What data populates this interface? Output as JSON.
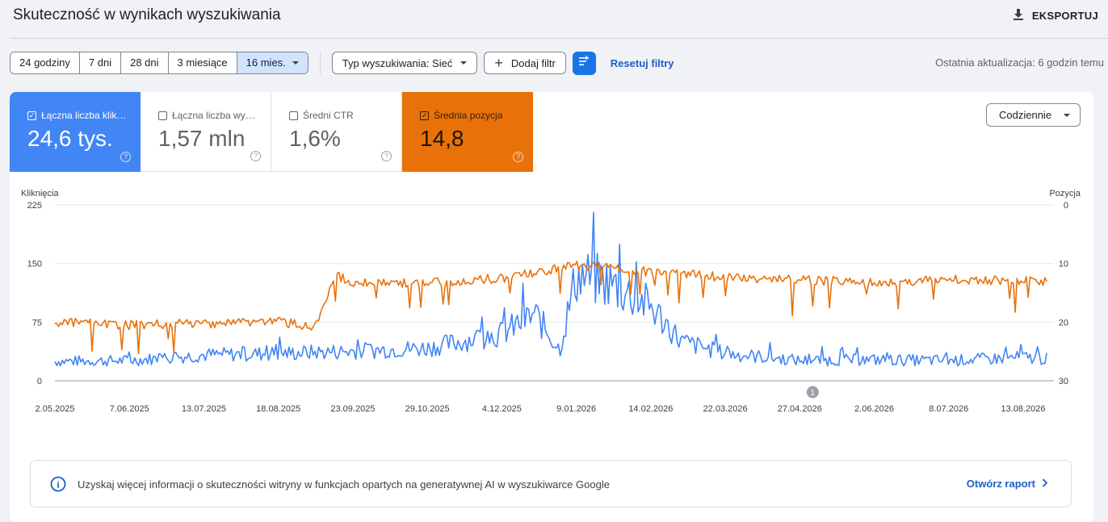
{
  "header": {
    "title": "Skuteczność w wynikach wyszukiwania",
    "export_label": "EKSPORTUJ"
  },
  "filters": {
    "ranges": [
      "24 godziny",
      "7 dni",
      "28 dni",
      "3 miesiące",
      "16 mies."
    ],
    "active_range": "16 mies.",
    "search_type": "Typ wyszukiwania: Sieć",
    "add_filter": "Dodaj filtr",
    "reset": "Resetuj filtry",
    "last_update": "Ostatnia aktualizacja: 6 godzin temu"
  },
  "metrics": {
    "clicks": {
      "label": "Łączna liczba klik…",
      "value": "24,6 tys.",
      "checked": true,
      "color": "#4285f4"
    },
    "impressions": {
      "label": "Łączna liczba wy…",
      "value": "1,57 mln",
      "checked": false
    },
    "ctr": {
      "label": "Średni CTR",
      "value": "1,6%",
      "checked": false
    },
    "position": {
      "label": "Średnia pozycja",
      "value": "14,8",
      "checked": true,
      "color": "#e8710a"
    },
    "help_glyph": "?"
  },
  "interval": {
    "selected": "Codziennie"
  },
  "chart_data": {
    "type": "line",
    "y_left_label": "Kliknięcia",
    "y_right_label": "Pozycja",
    "y_left_ticks": [
      "225",
      "150",
      "75",
      "0"
    ],
    "y_right_ticks": [
      "0",
      "10",
      "20",
      "30"
    ],
    "ylim_left": [
      0,
      225
    ],
    "ylim_right_inverted": [
      0,
      30
    ],
    "x_ticks": [
      "2.05.2025",
      "7.06.2025",
      "13.07.2025",
      "18.08.2025",
      "23.09.2025",
      "29.10.2025",
      "4.12.2025",
      "9.01.2026",
      "14.02.2026",
      "22.03.2026",
      "27.04.2026",
      "2.06.2026",
      "8.07.2026",
      "13.08.2026"
    ],
    "annotation_marker": "1",
    "annotation_date": "27.04.2026",
    "series": [
      {
        "color": "#4285f4",
        "axis": "left",
        "x": [
          "2.05.2025",
          "7.06.2025",
          "13.07.2025",
          "18.08.2025",
          "23.09.2025",
          "29.10.2025",
          "4.12.2025",
          "20.12.2025",
          "1.01.2026",
          "9.01.2026",
          "25.01.2026",
          "14.02.2026",
          "1.03.2026",
          "22.03.2026",
          "27.04.2026",
          "2.06.2026",
          "8.07.2026",
          "13.08.2026",
          "25.08.2026"
        ],
        "values": [
          25,
          26,
          33,
          35,
          38,
          42,
          60,
          85,
          40,
          135,
          125,
          95,
          50,
          35,
          26,
          27,
          26,
          30,
          28
        ]
      },
      {
        "color": "#e8710a",
        "axis": "right",
        "x": [
          "2.05.2025",
          "7.06.2025",
          "13.07.2025",
          "18.08.2025",
          "5.09.2025",
          "15.09.2025",
          "23.09.2025",
          "29.10.2025",
          "4.12.2025",
          "9.01.2026",
          "25.01.2026",
          "14.02.2026",
          "22.03.2026",
          "27.04.2026",
          "2.06.2026",
          "8.07.2026",
          "13.08.2026",
          "25.08.2026"
        ],
        "values": [
          20,
          20.5,
          20.2,
          19.8,
          21,
          12,
          13.2,
          13.3,
          12.5,
          10.3,
          10.7,
          11.5,
          12.3,
          12.8,
          13.2,
          12.7,
          12.9,
          13
        ]
      }
    ]
  },
  "info": {
    "icon_glyph": "i",
    "text": "Uzyskaj więcej informacji o skuteczności witryny w funkcjach opartych na generatywnej AI w wyszukiwarce Google",
    "link": "Otwórz raport"
  }
}
